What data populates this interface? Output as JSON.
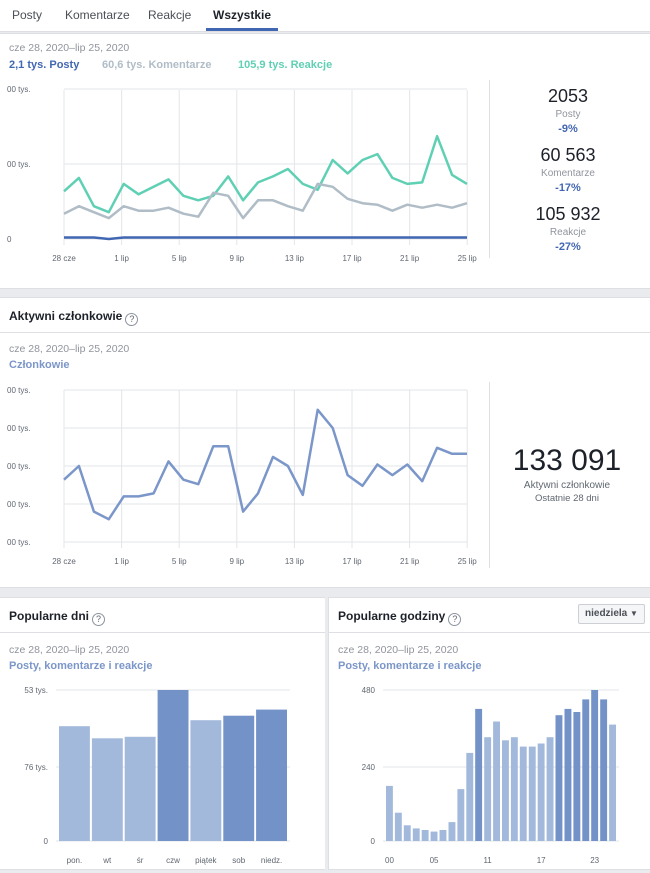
{
  "tabs": [
    {
      "label": "Posty",
      "active": false
    },
    {
      "label": "Komentarze",
      "active": false
    },
    {
      "label": "Reakcje",
      "active": false
    },
    {
      "label": "Wszystkie",
      "active": true
    }
  ],
  "engagement": {
    "date_range": "cze 28, 2020–lip 25, 2020",
    "legend": [
      {
        "label": "2,1 tys. Posty",
        "color": "#4267b2"
      },
      {
        "label": "60,6 tys. Komentarze",
        "color": "#b0bdc7"
      },
      {
        "label": "105,9 tys. Reakcje",
        "color": "#5fd0b4"
      }
    ],
    "stats": [
      {
        "value": "2053",
        "label": "Posty",
        "change": "-9%"
      },
      {
        "value": "60 563",
        "label": "Komentarze",
        "change": "-17%"
      },
      {
        "value": "105 932",
        "label": "Reakcje",
        "change": "-27%"
      }
    ]
  },
  "active_members": {
    "title": "Aktywni członkowie",
    "date_range": "cze 28, 2020–lip 25, 2020",
    "series_label": "Członkowie",
    "value": "133 091",
    "label": "Aktywni członkowie",
    "sub": "Ostatnie 28 dni"
  },
  "popular_days": {
    "title": "Popularne dni",
    "date_range": "cze 28, 2020–lip 25, 2020",
    "series_label": "Posty, komentarze i reakcje"
  },
  "popular_hours": {
    "title": "Popularne godziny",
    "dropdown": "niedziela",
    "date_range": "cze 28, 2020–lip 25, 2020",
    "series_label": "Posty, komentarze i reakcje"
  },
  "chart_data": [
    {
      "type": "line",
      "x_ticks": [
        "28 cze",
        "1 lip",
        "5 lip",
        "9 lip",
        "13 lip",
        "17 lip",
        "21 lip",
        "25 lip"
      ],
      "y_ticks": [
        "00 tys.",
        "00 tys.",
        "0"
      ],
      "ylim": [
        0,
        1
      ],
      "series": [
        {
          "name": "Reakcje",
          "color": "#5fd0b4",
          "values": [
            0.32,
            0.41,
            0.22,
            0.18,
            0.37,
            0.3,
            0.35,
            0.4,
            0.29,
            0.26,
            0.29,
            0.42,
            0.26,
            0.38,
            0.42,
            0.47,
            0.37,
            0.33,
            0.53,
            0.44,
            0.53,
            0.57,
            0.41,
            0.37,
            0.38,
            0.69,
            0.43,
            0.37
          ]
        },
        {
          "name": "Komentarze",
          "color": "#b0bdc7",
          "values": [
            0.17,
            0.22,
            0.18,
            0.14,
            0.22,
            0.19,
            0.19,
            0.21,
            0.17,
            0.15,
            0.31,
            0.29,
            0.14,
            0.26,
            0.26,
            0.22,
            0.19,
            0.37,
            0.35,
            0.27,
            0.24,
            0.23,
            0.19,
            0.23,
            0.21,
            0.23,
            0.21,
            0.24
          ]
        },
        {
          "name": "Posty",
          "color": "#4267b2",
          "values": [
            0.01,
            0.01,
            0.01,
            0.0,
            0.01,
            0.01,
            0.01,
            0.01,
            0.01,
            0.01,
            0.01,
            0.01,
            0.01,
            0.01,
            0.01,
            0.01,
            0.01,
            0.01,
            0.01,
            0.01,
            0.01,
            0.01,
            0.01,
            0.01,
            0.01,
            0.01,
            0.01,
            0.01
          ]
        }
      ]
    },
    {
      "type": "line",
      "x_ticks": [
        "28 cze",
        "1 lip",
        "5 lip",
        "9 lip",
        "13 lip",
        "17 lip",
        "21 lip",
        "25 lip"
      ],
      "y_ticks": [
        "00 tys.",
        "00 tys.",
        "00 tys.",
        "00 tys.",
        "00 tys."
      ],
      "ylim": [
        0,
        1
      ],
      "series": [
        {
          "name": "Członkowie",
          "color": "#7b96c9",
          "values": [
            0.41,
            0.5,
            0.2,
            0.15,
            0.3,
            0.3,
            0.32,
            0.53,
            0.41,
            0.38,
            0.63,
            0.63,
            0.2,
            0.32,
            0.56,
            0.5,
            0.31,
            0.87,
            0.75,
            0.44,
            0.37,
            0.51,
            0.44,
            0.51,
            0.4,
            0.62,
            0.58,
            0.58
          ]
        }
      ]
    },
    {
      "type": "bar",
      "categories": [
        "pon.",
        "wt",
        "śr",
        "czw",
        "piątek",
        "sob",
        "niedz."
      ],
      "y_ticks": [
        "53 tys.",
        "76 tys.",
        "0"
      ],
      "ylim": [
        0,
        1
      ],
      "values": [
        0.76,
        0.68,
        0.69,
        1.0,
        0.8,
        0.83,
        0.87
      ],
      "highlight": [
        false,
        false,
        false,
        true,
        false,
        true,
        true
      ]
    },
    {
      "type": "bar",
      "x_ticks": [
        "00",
        "05",
        "11",
        "17",
        "23"
      ],
      "y_ticks": [
        "480",
        "240",
        "0"
      ],
      "ylim": [
        0,
        480
      ],
      "values": [
        175,
        90,
        50,
        40,
        35,
        30,
        35,
        60,
        165,
        280,
        420,
        330,
        380,
        320,
        330,
        300,
        300,
        310,
        330,
        400,
        420,
        410,
        450,
        480,
        450,
        370
      ],
      "highlight": [
        false,
        false,
        false,
        false,
        false,
        false,
        false,
        false,
        false,
        false,
        true,
        false,
        false,
        false,
        false,
        false,
        false,
        false,
        false,
        true,
        true,
        true,
        true,
        true,
        true,
        false
      ]
    }
  ]
}
